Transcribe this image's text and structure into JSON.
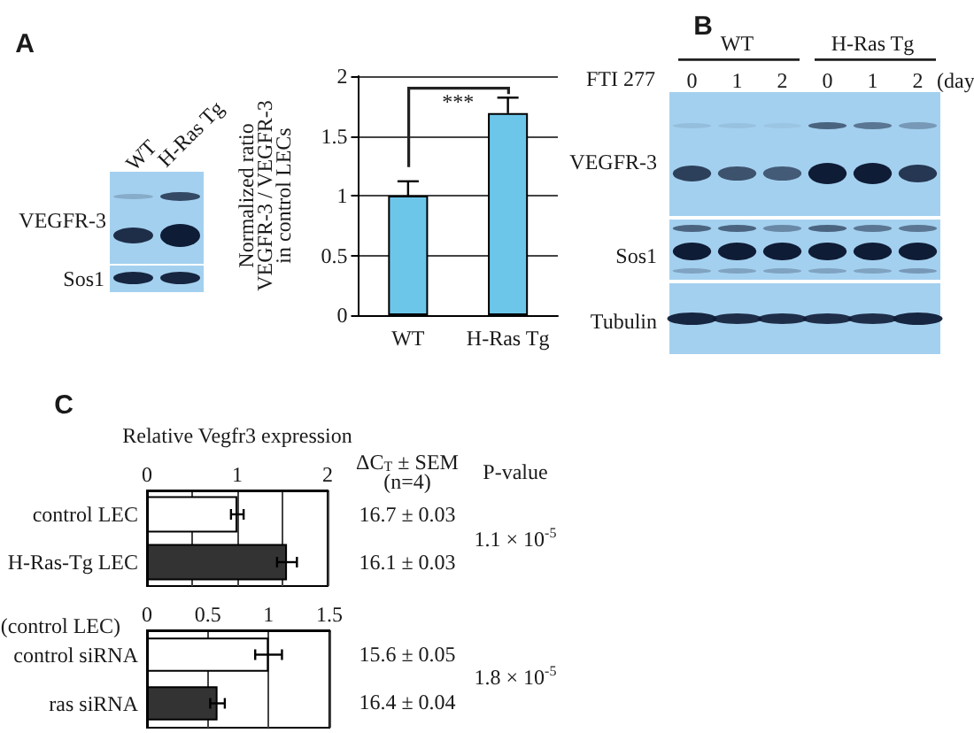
{
  "chart_data": [
    {
      "type": "other",
      "title": "A",
      "annotations": [
        "WT",
        "H-Ras Tg",
        "VEGFR-3",
        "Sos1"
      ]
    },
    {
      "type": "bar",
      "categories": [
        "WT",
        "H-Ras Tg"
      ],
      "values": [
        1,
        1.69
      ],
      "errors": [
        [
          1,
          1.12
        ],
        [
          1.69,
          1.82
        ]
      ],
      "color": "#6cc6ea",
      "ylabel": "Normalized ratio\nVEGFR-3 / VEGFR-3\nin control LECs",
      "ylim": [
        0,
        2
      ],
      "yticks": [
        0,
        0.5,
        1,
        1.5,
        2
      ],
      "grid": "y",
      "annotations": [
        "***"
      ]
    },
    {
      "type": "other",
      "title": "B",
      "annotations": [
        "WT",
        "H-Ras Tg",
        "FTI 277",
        "0",
        "1",
        "2",
        "0",
        "1",
        "2",
        "(day",
        "VEGFR-3",
        "Sos1",
        "Tubulin"
      ]
    },
    {
      "type": "bar",
      "orientation": "horizontal",
      "title": "C",
      "xlabel": "Relative Vegfr3 expression",
      "categories": [
        "control LEC",
        "H-Ras-Tg LEC"
      ],
      "values": [
        1,
        1.55
      ],
      "errors": [
        0.07,
        0.11
      ],
      "colors": [
        "#ffffff",
        "#333333"
      ],
      "xlim": [
        0,
        2
      ],
      "xticks": [
        0,
        {
          "value": 0.5,
          "label": null
        },
        1,
        {
          "value": 1.5,
          "label": null
        },
        2
      ],
      "grid": "x",
      "annotations": [
        "ΔC$_{T}$ ± SEM\n(n=4)",
        "16.7 ± 0.03",
        "16.1 ± 0.03",
        "P-value",
        "1.1 × 10$^{-5}$"
      ]
    },
    {
      "type": "bar",
      "orientation": "horizontal",
      "ylabel": "(control LEC)",
      "categories": [
        "control siRNA",
        "ras siRNA"
      ],
      "values": [
        1,
        0.58
      ],
      "errors": [
        0.11,
        0.06
      ],
      "colors": [
        "#ffffff",
        "#333333"
      ],
      "xlim": [
        0,
        1.5
      ],
      "xticks": [
        0,
        0.5,
        1,
        1.5
      ],
      "grid": "x",
      "annotations": [
        "15.6 ± 0.05",
        "16.4 ± 0.04",
        "1.8 × 10$^{-5}$"
      ]
    }
  ]
}
